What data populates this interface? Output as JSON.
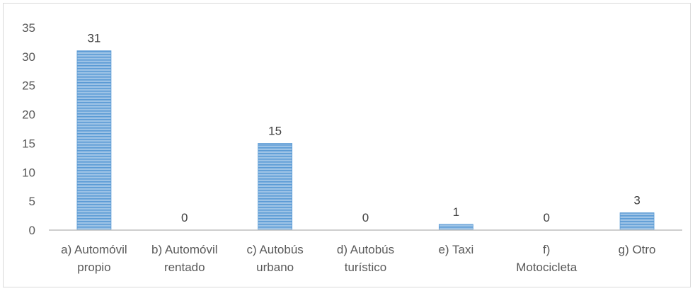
{
  "chart_data": {
    "type": "bar",
    "title": "",
    "xlabel": "",
    "ylabel": "",
    "categories": [
      [
        "a) Automóvil",
        "propio"
      ],
      [
        "b) Automóvil",
        "rentado"
      ],
      [
        "c) Autobús",
        "urbano"
      ],
      [
        "d) Autobús",
        "turístico"
      ],
      [
        "e) Taxi"
      ],
      [
        "f)",
        "Motocicleta"
      ],
      [
        "g) Otro"
      ]
    ],
    "values": [
      31,
      0,
      15,
      0,
      1,
      0,
      3
    ],
    "data_labels": [
      "31",
      "0",
      "15",
      "0",
      "1",
      "0",
      "3"
    ],
    "ylim": [
      0,
      35
    ],
    "yticks": [
      0,
      5,
      10,
      15,
      20,
      25,
      30,
      35
    ],
    "grid": false,
    "legend": "none",
    "colors": {
      "bar_fill": "#9dc3e6",
      "bar_stripe": "#5b9bd5",
      "bar_edge": "#5b9bd5",
      "axis": "#bfbfbf",
      "text": "#595959"
    }
  }
}
